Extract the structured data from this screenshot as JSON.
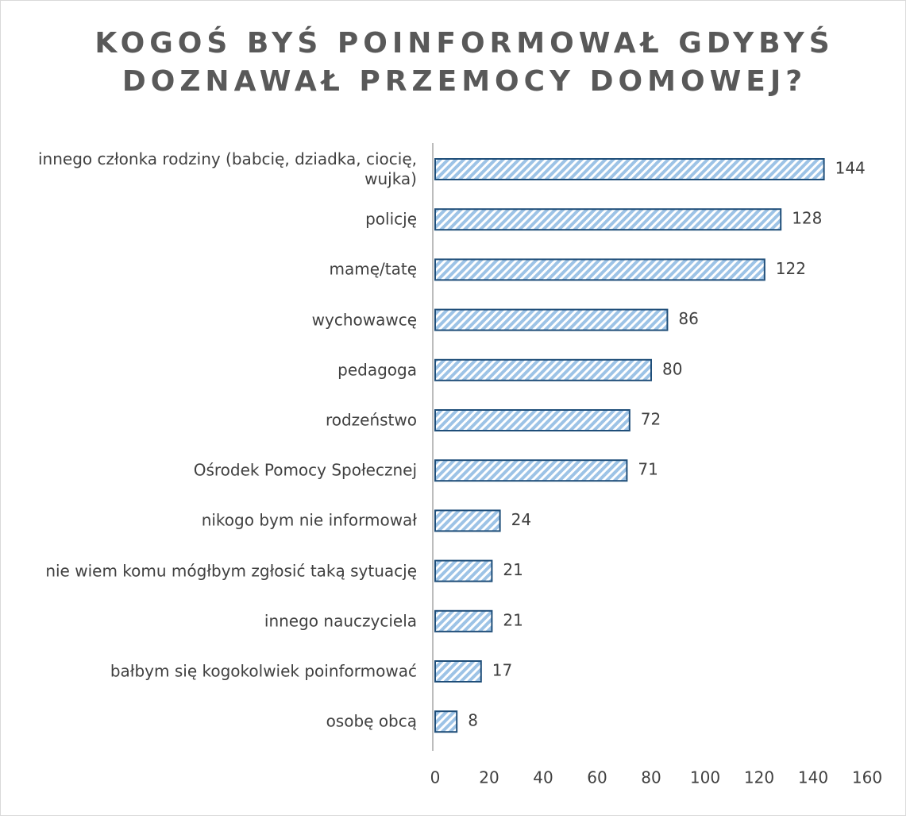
{
  "chart_data": {
    "type": "bar",
    "orientation": "horizontal",
    "title": [
      "KOGOŚ BYŚ POINFORMOWAŁ GDYBYŚ",
      "DOZNAWAŁ PRZEMOCY DOMOWEJ?"
    ],
    "categories": [
      "innego członka rodziny (babcię, dziadka, ciocię, wujka)",
      "policję",
      "mamę/tatę",
      "wychowawcę",
      "pedagoga",
      "rodzeństwo",
      "Ośrodek Pomocy Społecznej",
      "nikogo bym nie informował",
      "nie wiem komu mógłbym zgłosić taką sytuację",
      "innego nauczyciela",
      "bałbym się kogokolwiek poinformować",
      "osobę obcą"
    ],
    "values": [
      144,
      128,
      122,
      86,
      80,
      72,
      71,
      24,
      21,
      21,
      17,
      8
    ],
    "color": "#9dc3e6",
    "edge_color": "#1f4e79",
    "xlim": [
      0,
      160
    ],
    "xticks": [
      0,
      20,
      40,
      60,
      80,
      100,
      120,
      140,
      160
    ],
    "grid": false
  }
}
